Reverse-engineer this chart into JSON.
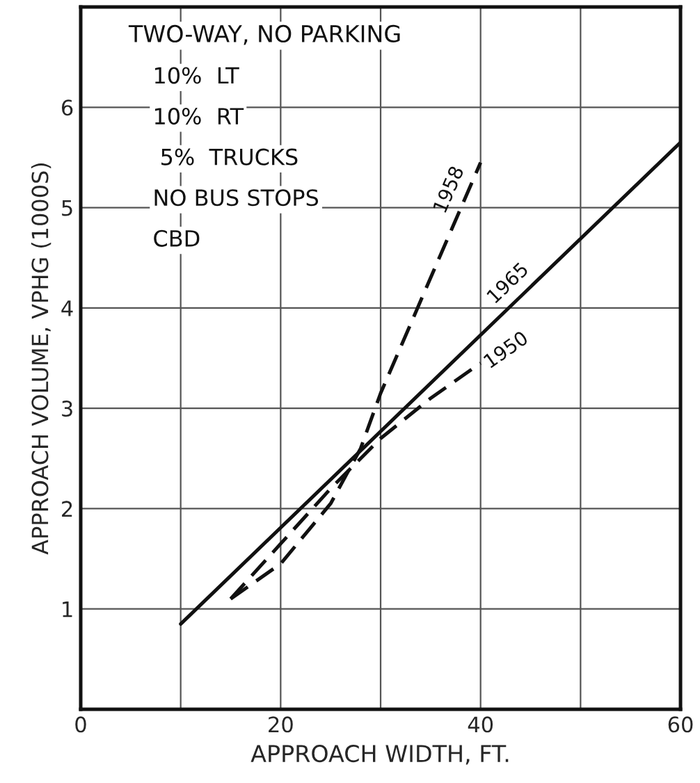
{
  "chart_data": {
    "type": "line",
    "xlabel": "APPROACH WIDTH, FT.",
    "ylabel": "APPROACH VOLUME, VPHG (1000S)",
    "annotations": [
      "TWO-WAY, NO PARKING",
      "10%  LT",
      "10%  RT",
      " 5%  TRUCKS",
      "NO BUS STOPS",
      "CBD"
    ],
    "series": [
      {
        "name": "1958",
        "color": "#111111",
        "line_style": "dashed",
        "x": [
          15,
          20,
          25,
          28,
          30,
          35,
          40
        ],
        "values": [
          1.1,
          1.45,
          2.05,
          2.6,
          3.15,
          4.3,
          5.45
        ]
      },
      {
        "name": "1965",
        "color": "#111111",
        "line_style": "solid",
        "x": [
          10,
          60
        ],
        "values": [
          0.85,
          5.65
        ]
      },
      {
        "name": "1950",
        "color": "#111111",
        "line_style": "dashed",
        "x": [
          15,
          20,
          25,
          30,
          35,
          40
        ],
        "values": [
          1.1,
          1.65,
          2.2,
          2.7,
          3.1,
          3.45
        ]
      }
    ],
    "xlim": [
      0,
      60
    ],
    "ylim": [
      0,
      7
    ],
    "xticks": [
      0,
      {
        "value": 10,
        "label": null
      },
      20,
      {
        "value": 30,
        "label": null
      },
      40,
      {
        "value": 50,
        "label": null
      },
      60
    ],
    "yticks": [
      1,
      2,
      3,
      4,
      5,
      6
    ],
    "grid": true
  }
}
